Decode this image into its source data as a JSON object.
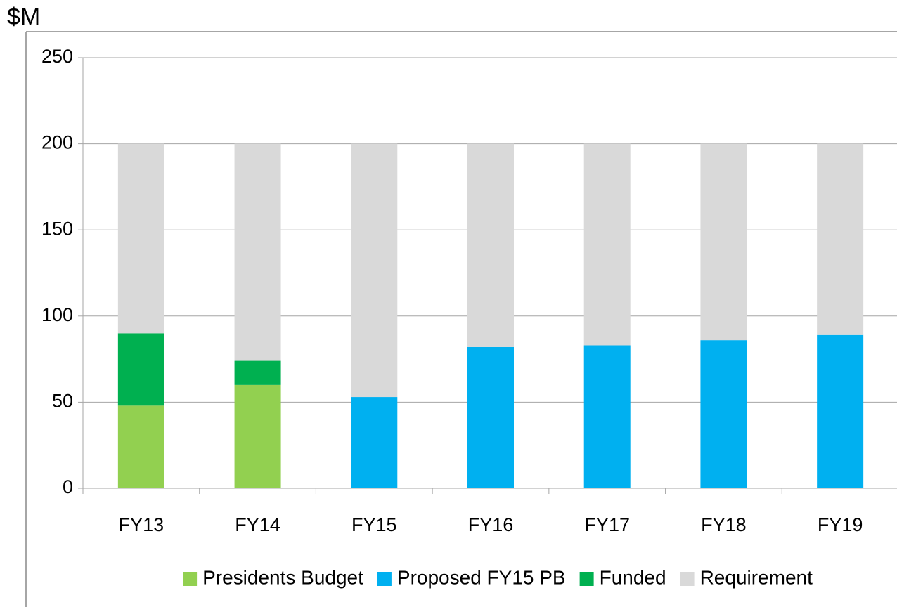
{
  "chart_data": {
    "type": "stacked_bar",
    "y_label": "$M",
    "categories": [
      "FY13",
      "FY14",
      "FY15",
      "FY16",
      "FY17",
      "FY18",
      "FY19"
    ],
    "series": [
      {
        "name": "Presidents Budget",
        "color": "#92d050",
        "values": [
          48,
          60,
          null,
          null,
          null,
          null,
          null
        ]
      },
      {
        "name": "Proposed FY15 PB",
        "color": "#00b0f0",
        "values": [
          null,
          null,
          53,
          82,
          83,
          86,
          89
        ]
      },
      {
        "name": "Funded",
        "color": "#00b050",
        "values": [
          42,
          14,
          null,
          null,
          null,
          null,
          null
        ]
      },
      {
        "name": "Requirement",
        "color": "#d9d9d9",
        "values": [
          110,
          126,
          147,
          118,
          117,
          114,
          111
        ]
      }
    ],
    "ylim": [
      0,
      250
    ],
    "yticks": [
      0,
      50,
      100,
      150,
      200,
      250
    ],
    "grid": true,
    "legend": "bottom"
  }
}
